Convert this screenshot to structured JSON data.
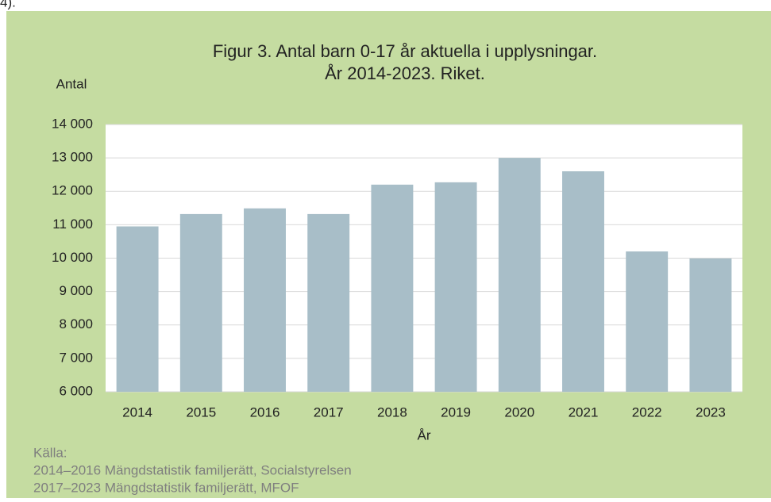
{
  "preceding_text": "4).",
  "chart_data": {
    "type": "bar",
    "title": "Figur 3. Antal barn 0-17 år aktuella i upplysningar.",
    "subtitle": "År 2014-2023. Riket.",
    "y_label": "Antal",
    "x_label": "År",
    "categories": [
      "2014",
      "2015",
      "2016",
      "2017",
      "2018",
      "2019",
      "2020",
      "2021",
      "2022",
      "2023"
    ],
    "values": [
      10950,
      11320,
      11490,
      11320,
      12200,
      12270,
      13000,
      12600,
      10200,
      9990
    ],
    "color": "#a8bec8",
    "ylim": [
      6000,
      14000
    ],
    "yticks": [
      {
        "value": 6000,
        "label": "6 000"
      },
      {
        "value": 7000,
        "label": "7 000"
      },
      {
        "value": 8000,
        "label": "8 000"
      },
      {
        "value": 9000,
        "label": "9 000"
      },
      {
        "value": 10000,
        "label": "10 000"
      },
      {
        "value": 11000,
        "label": "11 000"
      },
      {
        "value": 12000,
        "label": "12 000"
      },
      {
        "value": 13000,
        "label": "13 000"
      },
      {
        "value": 14000,
        "label": "14 000"
      }
    ],
    "grid": true
  },
  "source": [
    "Källa:",
    "2014–2016 Mängdstatistik familjerätt, Socialstyrelsen",
    "2017–2023 Mängdstatistik familjerätt, MFOF"
  ]
}
